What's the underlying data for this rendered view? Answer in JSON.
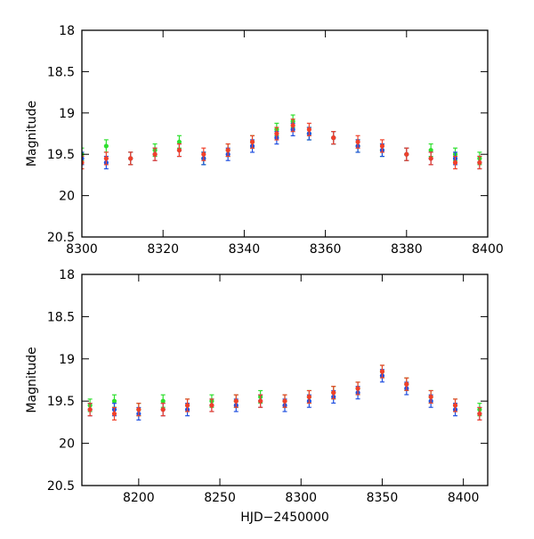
{
  "chart_data": [
    {
      "type": "scatter",
      "xlabel": "",
      "ylabel": "Magnitude",
      "xlim": [
        8300,
        8400
      ],
      "ylim": [
        20.5,
        18
      ],
      "y_inverted": true,
      "x_ticks": [
        "8300",
        "8320",
        "8340",
        "8360",
        "8380",
        "8400"
      ],
      "y_ticks": [
        "18",
        "18.5",
        "19",
        "19.5",
        "20",
        "20.5"
      ],
      "error_bars": true,
      "series": [
        {
          "color": "#2ee02e",
          "x": [
            8300,
            8306,
            8312,
            8318,
            8324,
            8330,
            8336,
            8342,
            8348,
            8352,
            8356,
            8362,
            8368,
            8374,
            8380,
            8386,
            8392,
            8398
          ],
          "y": [
            19.5,
            19.4,
            19.55,
            19.45,
            19.35,
            19.55,
            19.45,
            19.35,
            19.2,
            19.1,
            19.25,
            19.3,
            19.4,
            19.45,
            19.5,
            19.45,
            19.5,
            19.55
          ]
        },
        {
          "color": "#1f4fe0",
          "x": [
            8300,
            8306,
            8312,
            8318,
            8324,
            8330,
            8336,
            8342,
            8348,
            8352,
            8356,
            8362,
            8368,
            8374,
            8380,
            8386,
            8392,
            8398
          ],
          "y": [
            19.55,
            19.6,
            19.55,
            19.5,
            19.45,
            19.55,
            19.5,
            19.4,
            19.3,
            19.2,
            19.25,
            19.3,
            19.4,
            19.45,
            19.5,
            19.55,
            19.55,
            19.6
          ]
        },
        {
          "color": "#f0402a",
          "x": [
            8300,
            8306,
            8312,
            8318,
            8324,
            8330,
            8336,
            8342,
            8348,
            8352,
            8356,
            8362,
            8368,
            8374,
            8380,
            8386,
            8392,
            8398
          ],
          "y": [
            19.6,
            19.55,
            19.55,
            19.5,
            19.45,
            19.5,
            19.45,
            19.35,
            19.25,
            19.15,
            19.2,
            19.3,
            19.35,
            19.4,
            19.5,
            19.55,
            19.6,
            19.6
          ]
        }
      ]
    },
    {
      "type": "scatter",
      "xlabel": "HJD−2450000",
      "ylabel": "Magnitude",
      "xlim": [
        8165,
        8415
      ],
      "ylim": [
        20.5,
        18
      ],
      "y_inverted": true,
      "x_ticks": [
        "8200",
        "8250",
        "8300",
        "8350",
        "8400"
      ],
      "y_ticks": [
        "18",
        "18.5",
        "19",
        "19.5",
        "20",
        "20.5"
      ],
      "error_bars": true,
      "series": [
        {
          "color": "#2ee02e",
          "x": [
            8170,
            8185,
            8200,
            8215,
            8230,
            8245,
            8260,
            8275,
            8290,
            8305,
            8320,
            8335,
            8350,
            8365,
            8380,
            8395,
            8410
          ],
          "y": [
            19.55,
            19.5,
            19.6,
            19.5,
            19.55,
            19.5,
            19.5,
            19.45,
            19.5,
            19.45,
            19.4,
            19.35,
            19.15,
            19.3,
            19.45,
            19.55,
            19.6
          ]
        },
        {
          "color": "#1f4fe0",
          "x": [
            8170,
            8185,
            8200,
            8215,
            8230,
            8245,
            8260,
            8275,
            8290,
            8305,
            8320,
            8335,
            8350,
            8365,
            8380,
            8395,
            8410
          ],
          "y": [
            19.6,
            19.6,
            19.65,
            19.6,
            19.6,
            19.55,
            19.55,
            19.5,
            19.55,
            19.5,
            19.45,
            19.4,
            19.2,
            19.35,
            19.5,
            19.6,
            19.65
          ]
        },
        {
          "color": "#f0402a",
          "x": [
            8170,
            8185,
            8200,
            8215,
            8230,
            8245,
            8260,
            8275,
            8290,
            8305,
            8320,
            8335,
            8350,
            8365,
            8380,
            8395,
            8410
          ],
          "y": [
            19.6,
            19.65,
            19.6,
            19.6,
            19.55,
            19.55,
            19.5,
            19.5,
            19.5,
            19.45,
            19.4,
            19.35,
            19.15,
            19.3,
            19.45,
            19.55,
            19.65
          ]
        }
      ]
    }
  ]
}
